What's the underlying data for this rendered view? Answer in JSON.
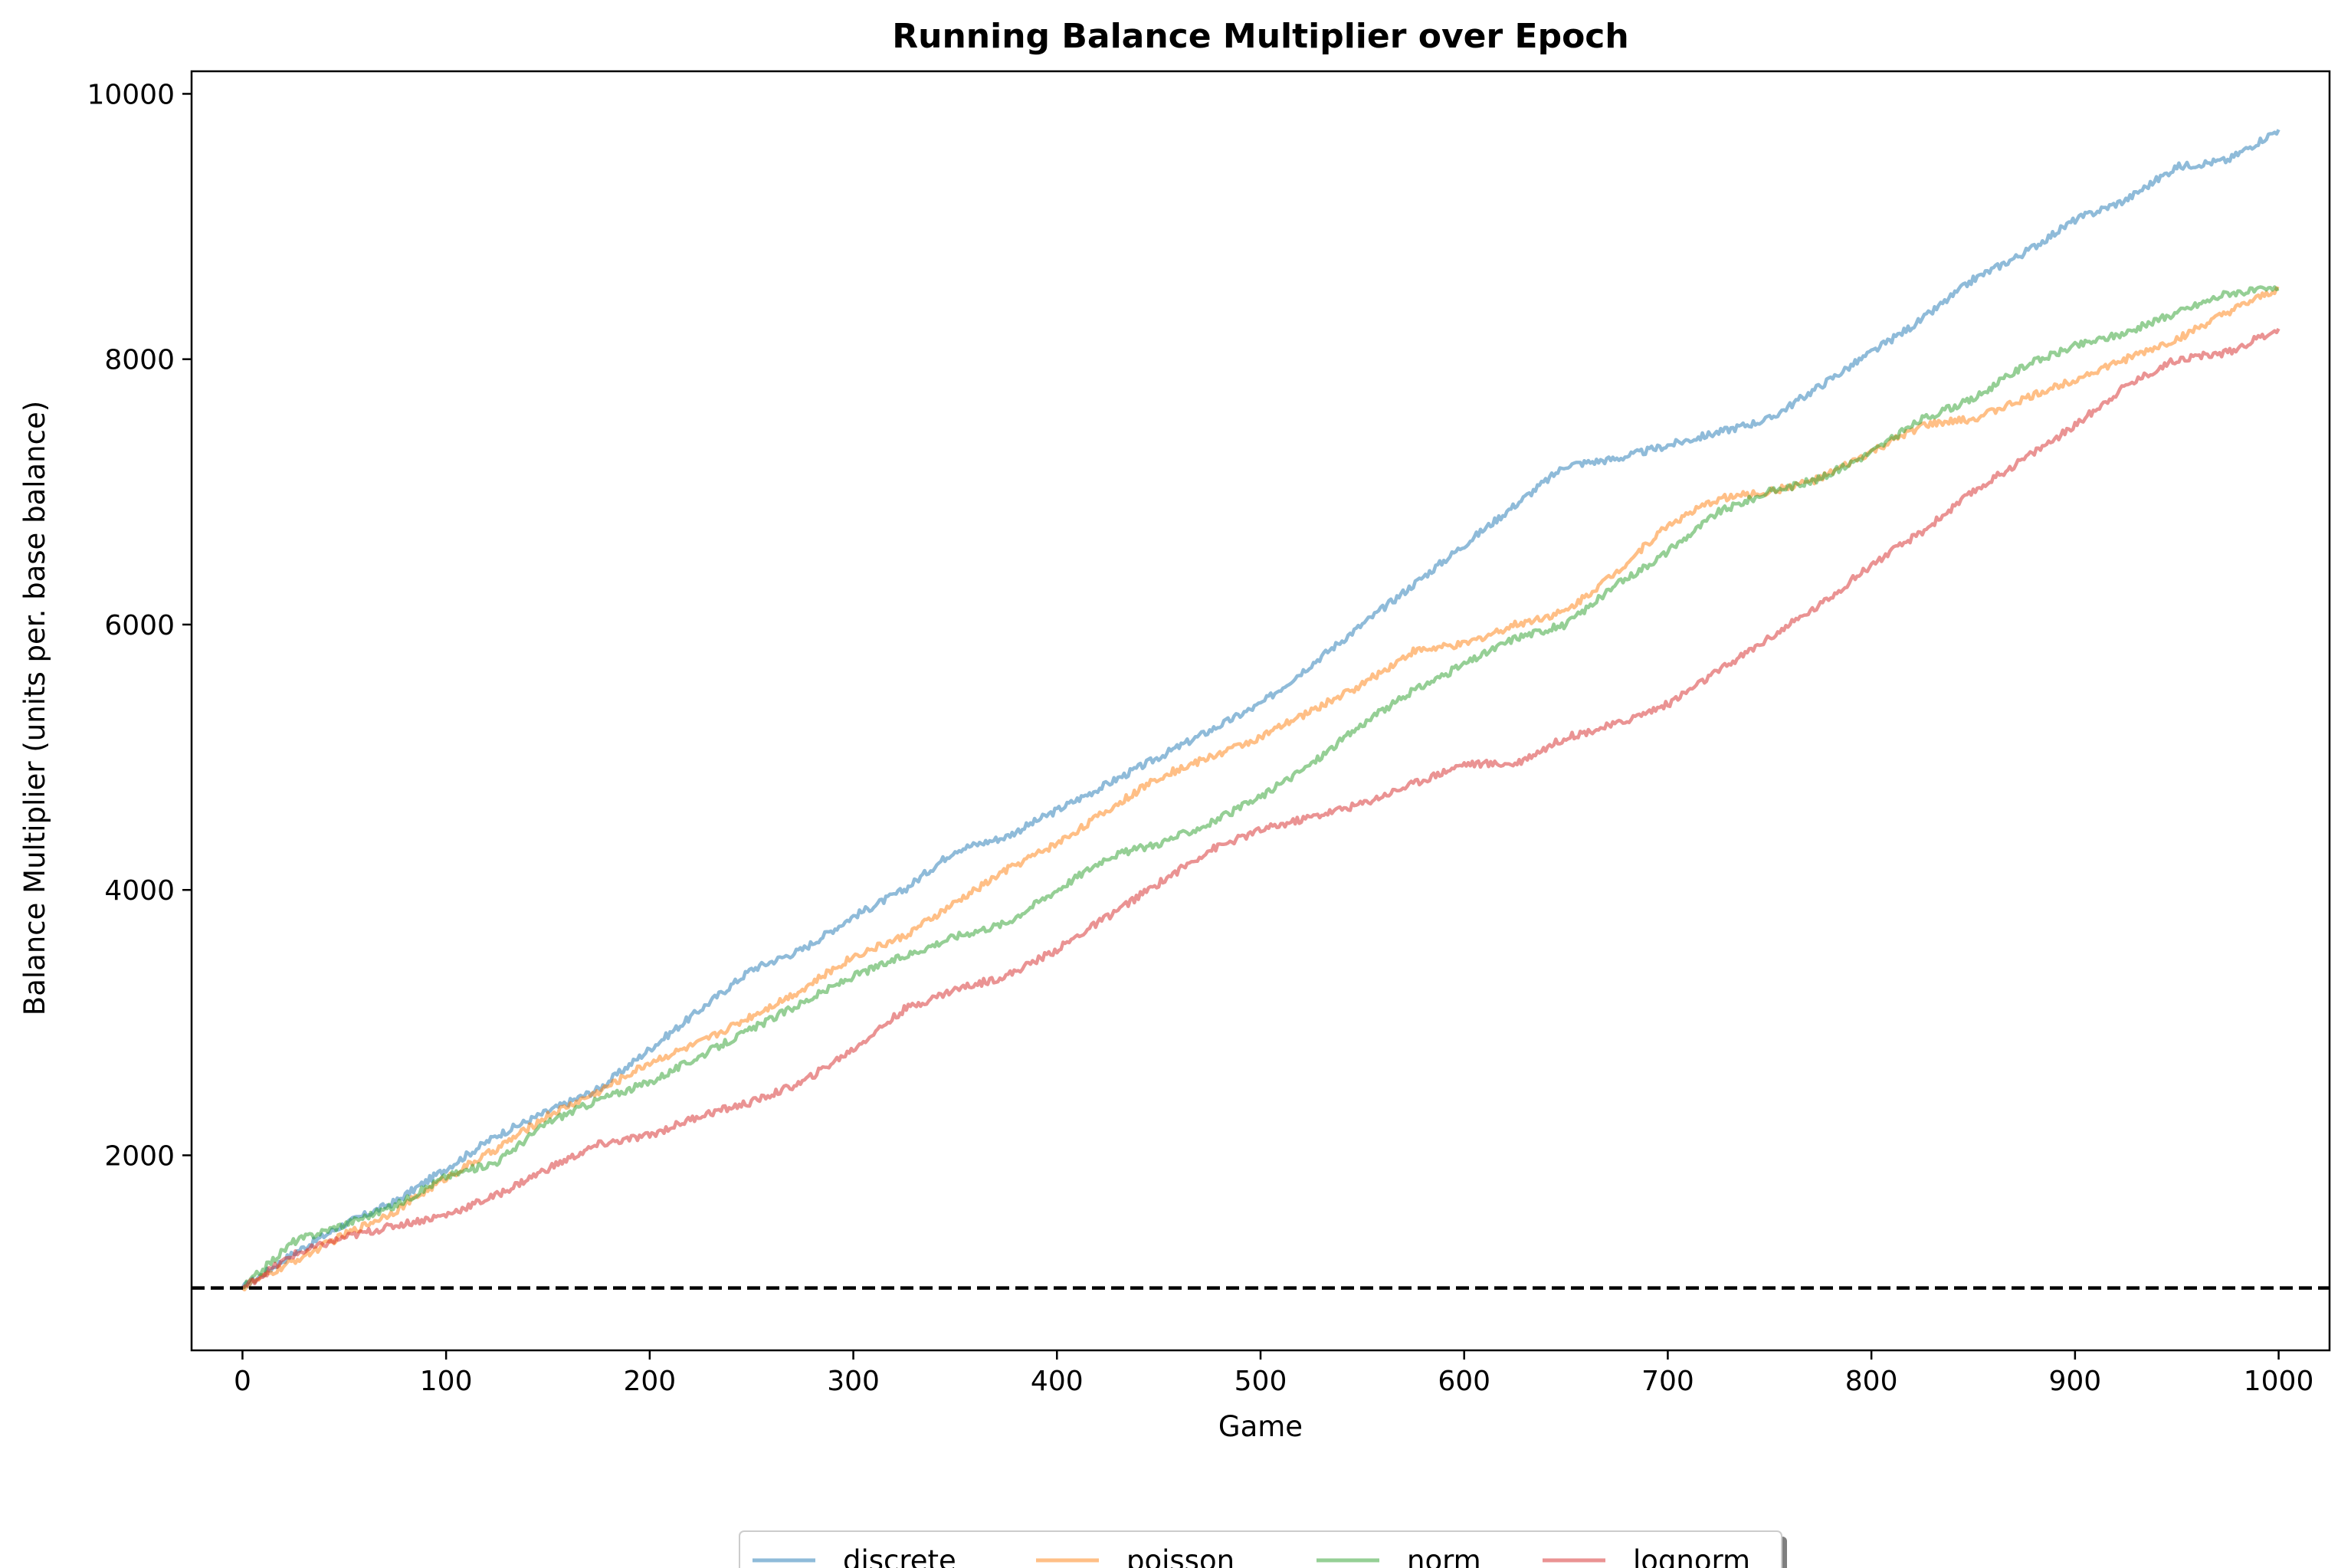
{
  "chart_data": {
    "type": "line",
    "title": "Running Balance Multiplier over Epoch",
    "xlabel": "Game",
    "ylabel": "Balance Multiplier (units per. base balance)",
    "xlim": [
      -25,
      1025
    ],
    "ylim": [
      530,
      10170
    ],
    "x_ticks": [
      0,
      100,
      200,
      300,
      400,
      500,
      600,
      700,
      800,
      900,
      1000
    ],
    "y_ticks": [
      2000,
      4000,
      6000,
      8000,
      10000
    ],
    "reference_line": {
      "y": 1000,
      "style": "dashed",
      "color": "#000000"
    },
    "grid": false,
    "legend_position": "bottom-center",
    "series": [
      {
        "name": "discrete",
        "color": "#1f77b4",
        "x": [
          0,
          25,
          50,
          75,
          100,
          125,
          150,
          175,
          200,
          225,
          250,
          275,
          300,
          325,
          350,
          375,
          400,
          425,
          450,
          475,
          500,
          525,
          550,
          575,
          600,
          625,
          650,
          675,
          700,
          725,
          750,
          775,
          800,
          825,
          850,
          875,
          900,
          925,
          950,
          975,
          1000
        ],
        "y": [
          1000,
          1260,
          1480,
          1650,
          1900,
          2150,
          2330,
          2500,
          2800,
          3100,
          3400,
          3550,
          3800,
          4000,
          4300,
          4400,
          4600,
          4800,
          5000,
          5200,
          5400,
          5700,
          6000,
          6300,
          6600,
          6900,
          7200,
          7250,
          7350,
          7450,
          7550,
          7800,
          8050,
          8300,
          8600,
          8800,
          9050,
          9200,
          9450,
          9500,
          9730
        ]
      },
      {
        "name": "poisson",
        "color": "#ff7f0e",
        "x": [
          0,
          25,
          50,
          75,
          100,
          125,
          150,
          175,
          200,
          225,
          250,
          275,
          300,
          325,
          350,
          375,
          400,
          425,
          450,
          475,
          500,
          525,
          550,
          575,
          600,
          625,
          650,
          675,
          700,
          725,
          750,
          775,
          800,
          825,
          850,
          875,
          900,
          925,
          950,
          975,
          1000
        ],
        "y": [
          1000,
          1200,
          1400,
          1580,
          1830,
          2050,
          2300,
          2480,
          2700,
          2850,
          3050,
          3250,
          3500,
          3650,
          3900,
          4150,
          4350,
          4600,
          4850,
          5000,
          5150,
          5350,
          5550,
          5800,
          5850,
          6000,
          6100,
          6400,
          6750,
          6950,
          7000,
          7100,
          7300,
          7500,
          7550,
          7700,
          7850,
          8000,
          8150,
          8350,
          8530
        ]
      },
      {
        "name": "norm",
        "color": "#2ca02c",
        "x": [
          0,
          25,
          50,
          75,
          100,
          125,
          150,
          175,
          200,
          225,
          250,
          275,
          300,
          325,
          350,
          375,
          400,
          425,
          450,
          475,
          500,
          525,
          550,
          575,
          600,
          625,
          650,
          675,
          700,
          725,
          750,
          775,
          800,
          825,
          850,
          875,
          900,
          925,
          950,
          975,
          1000
        ],
        "y": [
          1000,
          1350,
          1480,
          1620,
          1840,
          1950,
          2250,
          2420,
          2550,
          2750,
          2950,
          3150,
          3350,
          3500,
          3650,
          3750,
          4000,
          4250,
          4350,
          4500,
          4700,
          4950,
          5250,
          5500,
          5700,
          5900,
          6000,
          6300,
          6550,
          6850,
          7000,
          7100,
          7300,
          7550,
          7700,
          7950,
          8100,
          8200,
          8350,
          8500,
          8530
        ]
      },
      {
        "name": "lognorm",
        "color": "#d62728",
        "x": [
          0,
          25,
          50,
          75,
          100,
          125,
          150,
          175,
          200,
          225,
          250,
          275,
          300,
          325,
          350,
          375,
          400,
          425,
          450,
          475,
          500,
          525,
          550,
          575,
          600,
          625,
          650,
          675,
          700,
          725,
          750,
          775,
          800,
          825,
          850,
          875,
          900,
          925,
          950,
          975,
          1000
        ],
        "y": [
          1000,
          1250,
          1380,
          1470,
          1550,
          1700,
          1900,
          2080,
          2150,
          2300,
          2400,
          2550,
          2800,
          3100,
          3250,
          3350,
          3550,
          3800,
          4050,
          4300,
          4450,
          4550,
          4650,
          4800,
          4950,
          4950,
          5150,
          5250,
          5400,
          5650,
          5900,
          6150,
          6450,
          6700,
          7000,
          7250,
          7500,
          7800,
          8000,
          8050,
          8230
        ]
      }
    ]
  }
}
